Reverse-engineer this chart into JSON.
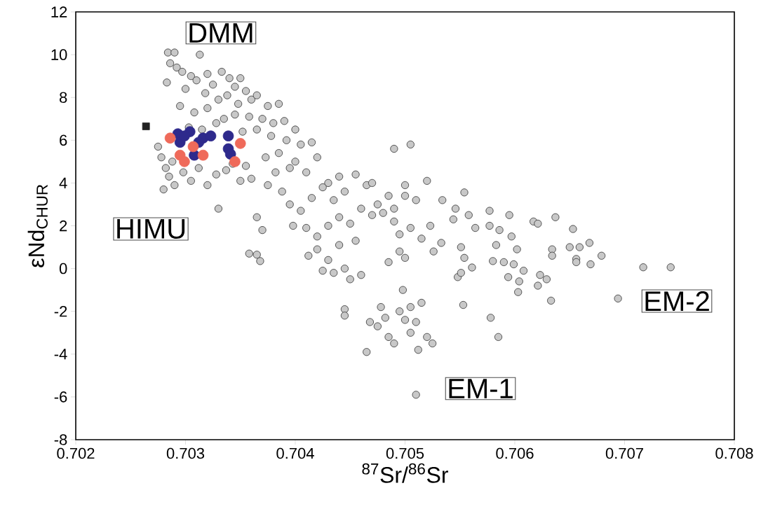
{
  "chart_data": {
    "type": "scatter",
    "xlabel": "$^{87}$Sr/$^{86}$Sr",
    "ylabel": "εNd$_{CHUR}$",
    "xlim": [
      0.702,
      0.708
    ],
    "ylim": [
      -8,
      12
    ],
    "xticks": [
      0.702,
      0.703,
      0.704,
      0.705,
      0.706,
      0.707,
      0.708
    ],
    "yticks": [
      -8,
      -6,
      -4,
      -2,
      0,
      2,
      4,
      6,
      8,
      10,
      12
    ],
    "annotations": [
      "DMM",
      "HIMU",
      "EM-1",
      "EM-2"
    ],
    "series": [
      {
        "color": "#c8c8c8",
        "marker": "circle",
        "x": [
          0.70284,
          0.7029,
          0.70286,
          0.70292,
          0.70297,
          0.70305,
          0.70313,
          0.7031,
          0.7032,
          0.70325,
          0.70333,
          0.7034,
          0.70345,
          0.7035,
          0.70355,
          0.70283,
          0.703,
          0.70318,
          0.7033,
          0.70338,
          0.70348,
          0.7036,
          0.70365,
          0.70375,
          0.70385,
          0.70295,
          0.70308,
          0.7032,
          0.70335,
          0.70345,
          0.70358,
          0.7037,
          0.7038,
          0.7039,
          0.704,
          0.70303,
          0.70315,
          0.70328,
          0.70352,
          0.70365,
          0.70378,
          0.70392,
          0.70405,
          0.70415,
          0.70275,
          0.70278,
          0.70282,
          0.70285,
          0.7029,
          0.7028,
          0.70288,
          0.70298,
          0.70305,
          0.70312,
          0.7032,
          0.70328,
          0.70337,
          0.70343,
          0.70355,
          0.7036,
          0.7035,
          0.7033,
          0.70365,
          0.7037,
          0.70368,
          0.70358,
          0.70365,
          0.70373,
          0.70385,
          0.70382,
          0.70395,
          0.70375,
          0.70388,
          0.704,
          0.7041,
          0.7042,
          0.7043,
          0.7044,
          0.70395,
          0.70405,
          0.70415,
          0.70425,
          0.70435,
          0.70445,
          0.70455,
          0.70465,
          0.70475,
          0.70485,
          0.70398,
          0.7041,
          0.7042,
          0.7043,
          0.7044,
          0.7045,
          0.7046,
          0.7047,
          0.7048,
          0.7049,
          0.705,
          0.7042,
          0.7043,
          0.7044,
          0.70445,
          0.70455,
          0.70435,
          0.7045,
          0.7046,
          0.70425,
          0.70412,
          0.70445,
          0.70445,
          0.7047,
          0.7049,
          0.70505,
          0.705,
          0.7051,
          0.7052,
          0.7049,
          0.70495,
          0.70505,
          0.70515,
          0.70495,
          0.70485,
          0.705,
          0.70478,
          0.70482,
          0.70475,
          0.70468,
          0.70465,
          0.70485,
          0.7049,
          0.70495,
          0.705,
          0.70498,
          0.70505,
          0.7051,
          0.70515,
          0.7052,
          0.70525,
          0.70505,
          0.70512,
          0.7051,
          0.70554,
          0.70534,
          0.70546,
          0.70544,
          0.70523,
          0.70533,
          0.70526,
          0.70558,
          0.70564,
          0.70551,
          0.70554,
          0.70561,
          0.70577,
          0.70595,
          0.70577,
          0.70586,
          0.70597,
          0.70583,
          0.70602,
          0.7058,
          0.7059,
          0.70599,
          0.70608,
          0.70594,
          0.70604,
          0.70623,
          0.70629,
          0.70621,
          0.70603,
          0.70633,
          0.70617,
          0.70621,
          0.70637,
          0.70634,
          0.70634,
          0.7065,
          0.70659,
          0.70653,
          0.70668,
          0.70656,
          0.70656,
          0.70669,
          0.70679,
          0.70694,
          0.70717,
          0.70742,
          0.70553,
          0.70578,
          0.70585,
          0.70548,
          0.70551
        ],
        "values": [
          10.1,
          10.1,
          9.6,
          9.4,
          9.2,
          9.0,
          10.0,
          8.8,
          9.1,
          8.6,
          9.2,
          8.9,
          8.5,
          8.9,
          8.3,
          8.7,
          8.4,
          8.2,
          7.9,
          8.1,
          7.7,
          7.9,
          8.1,
          7.6,
          7.7,
          7.6,
          7.3,
          7.5,
          7.0,
          7.2,
          7.1,
          7.0,
          6.8,
          6.9,
          6.5,
          6.6,
          6.5,
          6.8,
          6.4,
          6.5,
          6.2,
          6.0,
          5.8,
          5.9,
          5.7,
          5.2,
          4.7,
          4.3,
          3.9,
          3.7,
          5.0,
          4.5,
          4.1,
          4.7,
          3.9,
          4.4,
          4.6,
          4.9,
          4.8,
          4.2,
          4.1,
          2.8,
          2.4,
          1.8,
          0.35,
          0.7,
          0.65,
          5.2,
          5.4,
          4.5,
          4.7,
          3.9,
          3.6,
          5.0,
          4.5,
          5.2,
          4.0,
          4.3,
          3.0,
          2.7,
          3.3,
          3.8,
          3.2,
          3.6,
          4.4,
          3.9,
          3.0,
          3.4,
          2.0,
          1.9,
          1.5,
          2.0,
          2.4,
          2.1,
          2.8,
          2.5,
          2.6,
          2.8,
          3.4,
          0.9,
          0.4,
          1.1,
          0.0,
          1.3,
          -0.2,
          -0.5,
          -0.3,
          -0.1,
          0.6,
          -1.9,
          -2.2,
          4.0,
          5.6,
          5.8,
          3.9,
          3.2,
          4.1,
          2.2,
          1.6,
          1.9,
          1.4,
          0.8,
          0.3,
          0.5,
          -1.8,
          -2.3,
          -2.7,
          -2.5,
          -3.9,
          -3.2,
          -3.5,
          -2.0,
          -2.4,
          -1.0,
          -1.8,
          -2.5,
          -1.6,
          -3.2,
          -3.5,
          -3.0,
          -3.8,
          -5.9,
          3.56,
          3.2,
          2.8,
          2.3,
          2.0,
          1.2,
          0.8,
          2.5,
          1.9,
          1.0,
          0.5,
          0.05,
          2.7,
          2.5,
          2.0,
          1.8,
          1.5,
          1.1,
          0.9,
          0.35,
          0.3,
          0.2,
          -0.1,
          -0.4,
          -0.6,
          -0.3,
          -0.5,
          -0.8,
          -1.1,
          -1.5,
          2.2,
          2.1,
          2.4,
          0.9,
          0.6,
          1.0,
          1.0,
          1.85,
          1.2,
          0.45,
          0.3,
          0.2,
          0.6,
          -1.4,
          0.06,
          0.06,
          -1.7,
          -2.3,
          -3.2,
          -0.4,
          -0.2
        ]
      },
      {
        "color": "#222222",
        "marker": "square",
        "x": [
          0.70264
        ],
        "values": [
          6.65
        ]
      },
      {
        "color": "#2e2a8c",
        "marker": "circle",
        "x": [
          0.70293,
          0.70304,
          0.70295,
          0.70305,
          0.70316,
          0.70323,
          0.70308,
          0.70339,
          0.70339,
          0.70299,
          0.70312,
          0.70341
        ],
        "values": [
          6.3,
          6.4,
          5.9,
          null,
          6.1,
          6.2,
          5.3,
          6.2,
          5.6,
          6.2,
          5.9,
          5.35
        ]
      },
      {
        "color": "#ef6a5a",
        "marker": "circle",
        "x": [
          0.70286,
          0.70307,
          0.70295,
          0.70299,
          0.70316,
          0.7035,
          0.70345
        ],
        "values": [
          6.1,
          5.7,
          5.3,
          5.0,
          5.3,
          5.85,
          5.0
        ]
      }
    ]
  }
}
